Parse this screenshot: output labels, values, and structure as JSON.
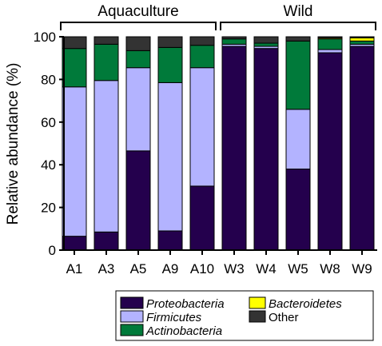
{
  "chart_data": {
    "type": "bar",
    "stacked": true,
    "ylabel": "Relative abundance (%)",
    "ylim": [
      0,
      100
    ],
    "yticks": [
      "0",
      "20",
      "40",
      "60",
      "80",
      "100"
    ],
    "grid": false,
    "categories": [
      "A1",
      "A3",
      "A5",
      "A9",
      "A10",
      "W3",
      "W4",
      "W5",
      "W8",
      "W9"
    ],
    "groups": [
      {
        "label": "Aquaculture",
        "from": 0,
        "to": 4
      },
      {
        "label": "Wild",
        "from": 5,
        "to": 9
      }
    ],
    "series": [
      {
        "name": "Proteobacteria",
        "italic": true,
        "color": "#24004d",
        "values": [
          6.5,
          8.5,
          46.5,
          9,
          30,
          95.5,
          94.5,
          38,
          92.5,
          95.5
        ]
      },
      {
        "name": "Firmicutes",
        "italic": true,
        "color": "#b3b3ff",
        "values": [
          70,
          71,
          39,
          69.5,
          55.5,
          1,
          1,
          28,
          1.5,
          1
        ]
      },
      {
        "name": "Actinobacteria",
        "italic": true,
        "color": "#007a3a",
        "values": [
          18,
          17,
          8,
          16.5,
          10.5,
          2.5,
          1.5,
          32,
          5,
          1.5
        ]
      },
      {
        "name": "Bacteroidetes",
        "italic": true,
        "color": "#ffff00",
        "values": [
          0,
          0,
          0,
          0,
          0,
          0,
          0,
          0,
          0.5,
          1.5
        ]
      },
      {
        "name": "Other",
        "italic": false,
        "color": "#333333",
        "values": [
          5.5,
          3.5,
          6.5,
          5,
          4,
          1,
          3,
          2,
          0.5,
          0.5
        ]
      }
    ],
    "legend": {
      "position": "bottom",
      "order": [
        "Proteobacteria",
        "Firmicutes",
        "Actinobacteria",
        "Bacteroidetes",
        "Other"
      ]
    }
  }
}
